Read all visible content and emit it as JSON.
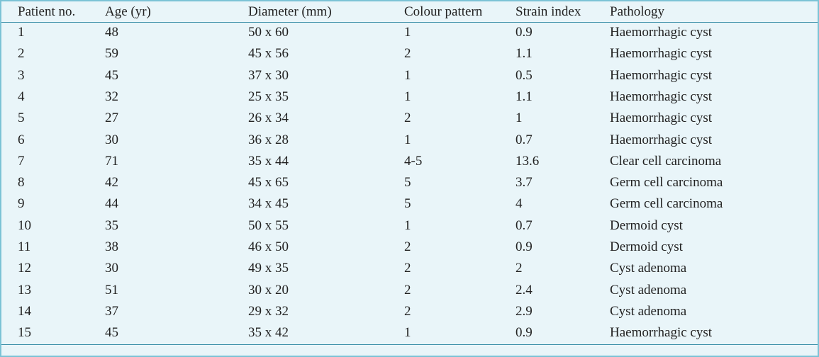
{
  "table": {
    "header": [
      "Patient no.",
      "Age (yr)",
      "Diameter (mm)",
      "Colour pattern",
      "Strain index",
      "Pathology"
    ],
    "rows": [
      [
        "1",
        "48",
        "50 x 60",
        "1",
        "0.9",
        "Haemorrhagic cyst"
      ],
      [
        "2",
        "59",
        "45 x 56",
        "2",
        "1.1",
        "Haemorrhagic cyst"
      ],
      [
        "3",
        "45",
        "37 x 30",
        "1",
        "0.5",
        "Haemorrhagic cyst"
      ],
      [
        "4",
        "32",
        "25 x 35",
        "1",
        "1.1",
        "Haemorrhagic cyst"
      ],
      [
        "5",
        "27",
        "26 x 34",
        "2",
        "1",
        "Haemorrhagic cyst"
      ],
      [
        "6",
        "30",
        "36 x 28",
        "1",
        "0.7",
        "Haemorrhagic cyst"
      ],
      [
        "7",
        "71",
        "35 x 44",
        "4-5",
        "13.6",
        "Clear cell carcinoma"
      ],
      [
        "8",
        "42",
        "45 x 65",
        "5",
        "3.7",
        "Germ cell carcinoma"
      ],
      [
        "9",
        "44",
        "34 x 45",
        "5",
        "4",
        "Germ cell carcinoma"
      ],
      [
        "10",
        "35",
        "50 x 55",
        "1",
        "0.7",
        "Dermoid cyst"
      ],
      [
        "11",
        "38",
        "46 x 50",
        "2",
        "0.9",
        "Dermoid cyst"
      ],
      [
        "12",
        "30",
        "49 x 35",
        "2",
        "2",
        "Cyst adenoma"
      ],
      [
        "13",
        "51",
        "30 x 20",
        "2",
        "2.4",
        "Cyst adenoma"
      ],
      [
        "14",
        "37",
        "29 x 32",
        "2",
        "2.9",
        "Cyst adenoma"
      ],
      [
        "15",
        "45",
        "35 x 42",
        "1",
        "0.9",
        "Haemorrhagic cyst"
      ]
    ]
  }
}
